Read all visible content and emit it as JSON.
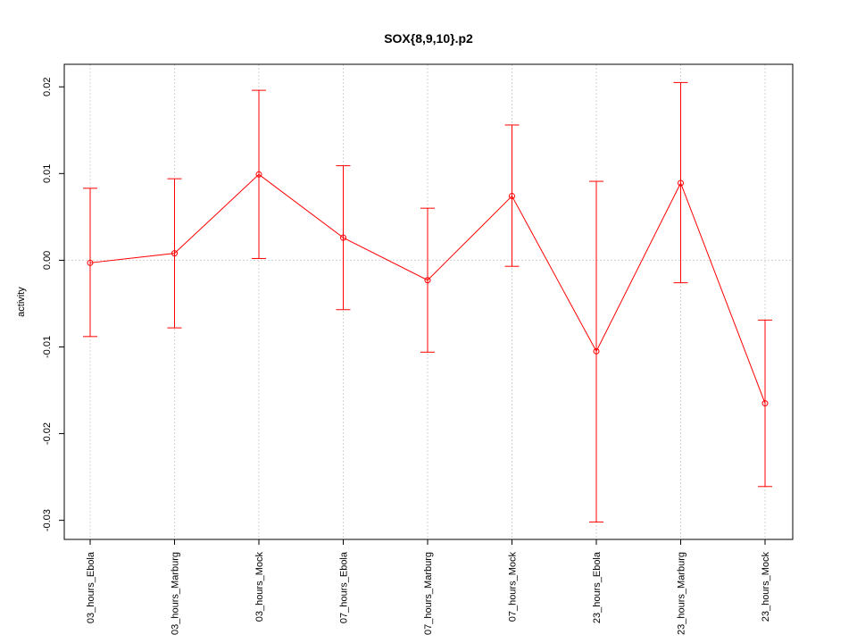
{
  "chart_data": {
    "type": "line",
    "title": "SOX{8,9,10}.p2",
    "xlabel": "",
    "ylabel": "activity",
    "categories": [
      "03_hours_Ebola",
      "03_hours_Marburg",
      "03_hours_Mock",
      "07_hours_Ebola",
      "07_hours_Marburg",
      "07_hours_Mock",
      "23_hours_Ebola",
      "23_hours_Marburg",
      "23_hours_Mock"
    ],
    "series": [
      {
        "values": [
          -0.0003,
          0.0008,
          0.0099,
          0.0026,
          -0.0023,
          0.0074,
          -0.0105,
          0.0089,
          -0.0165
        ],
        "lower": [
          -0.0088,
          -0.0078,
          0.0002,
          -0.0057,
          -0.0106,
          -0.0007,
          -0.0302,
          -0.0026,
          -0.0261
        ],
        "upper": [
          0.0083,
          0.0094,
          0.0196,
          0.0109,
          0.006,
          0.0156,
          0.0091,
          0.0205,
          -0.0069
        ],
        "color": "#ff0000"
      }
    ],
    "yticks": [
      "-0.03",
      "-0.02",
      "-0.01",
      "0.00",
      "0.01",
      "0.02"
    ],
    "ylim": [
      -0.0322,
      0.0226
    ],
    "grid": true
  }
}
